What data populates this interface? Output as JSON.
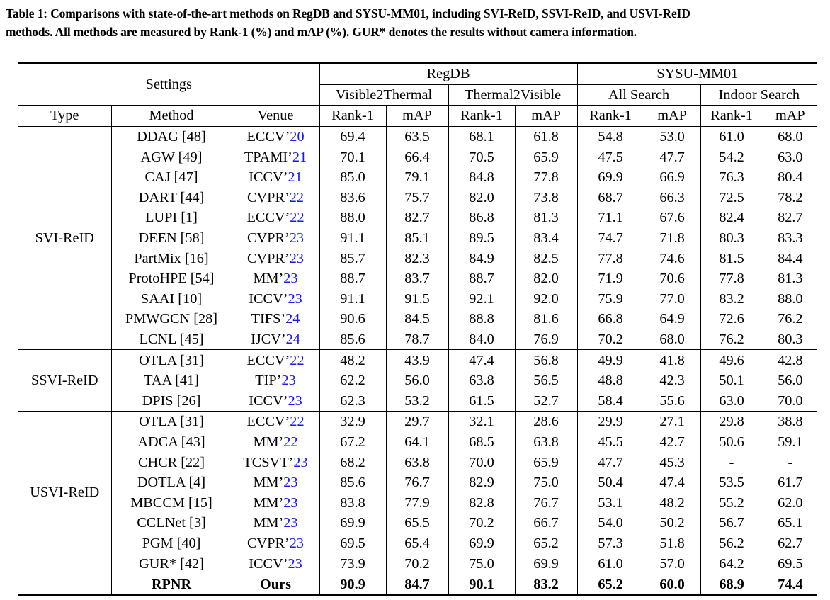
{
  "caption": {
    "line1": "Table 1: Comparisons with state-of-the-art methods on RegDB and SYSU-MM01, including SVI-ReID, SSVI-ReID, and USVI-ReID",
    "line2": "methods. All methods are measured by Rank-1 (%) and mAP (%). GUR* denotes the results without camera information."
  },
  "header": {
    "settings": "Settings",
    "regdb": "RegDB",
    "sysu": "SYSU-MM01",
    "v2t": "Visible2Thermal",
    "t2v": "Thermal2Visible",
    "all_search": "All Search",
    "indoor_search": "Indoor Search",
    "type": "Type",
    "method": "Method",
    "venue": "Venue",
    "rank1": "Rank-1",
    "map": "mAP"
  },
  "link_color": "#1a1aee",
  "groups": [
    {
      "type": "SVI-ReID",
      "rows": [
        {
          "method": "DDAG [48]",
          "venue": "ECCV’",
          "year": "20",
          "values": [
            "69.4",
            "63.5",
            "68.1",
            "61.8",
            "54.8",
            "53.0",
            "61.0",
            "68.0"
          ]
        },
        {
          "method": "AGW [49]",
          "venue": "TPAMI’",
          "year": "21",
          "values": [
            "70.1",
            "66.4",
            "70.5",
            "65.9",
            "47.5",
            "47.7",
            "54.2",
            "63.0"
          ]
        },
        {
          "method": "CAJ [47]",
          "venue": "ICCV’",
          "year": "21",
          "values": [
            "85.0",
            "79.1",
            "84.8",
            "77.8",
            "69.9",
            "66.9",
            "76.3",
            "80.4"
          ]
        },
        {
          "method": "DART [44]",
          "venue": "CVPR’",
          "year": "22",
          "values": [
            "83.6",
            "75.7",
            "82.0",
            "73.8",
            "68.7",
            "66.3",
            "72.5",
            "78.2"
          ]
        },
        {
          "method": "LUPI [1]",
          "venue": "ECCV’",
          "year": "22",
          "values": [
            "88.0",
            "82.7",
            "86.8",
            "81.3",
            "71.1",
            "67.6",
            "82.4",
            "82.7"
          ]
        },
        {
          "method": "DEEN [58]",
          "venue": "CVPR’",
          "year": "23",
          "values": [
            "91.1",
            "85.1",
            "89.5",
            "83.4",
            "74.7",
            "71.8",
            "80.3",
            "83.3"
          ]
        },
        {
          "method": "PartMix [16]",
          "venue": "CVPR’",
          "year": "23",
          "values": [
            "85.7",
            "82.3",
            "84.9",
            "82.5",
            "77.8",
            "74.6",
            "81.5",
            "84.4"
          ]
        },
        {
          "method": "ProtoHPE [54]",
          "venue": "MM’",
          "year": "23",
          "values": [
            "88.7",
            "83.7",
            "88.7",
            "82.0",
            "71.9",
            "70.6",
            "77.8",
            "81.3"
          ]
        },
        {
          "method": "SAAI [10]",
          "venue": "ICCV’",
          "year": "23",
          "values": [
            "91.1",
            "91.5",
            "92.1",
            "92.0",
            "75.9",
            "77.0",
            "83.2",
            "88.0"
          ]
        },
        {
          "method": "PMWGCN [28]",
          "venue": "TIFS’",
          "year": "24",
          "values": [
            "90.6",
            "84.5",
            "88.8",
            "81.6",
            "66.8",
            "64.9",
            "72.6",
            "76.2"
          ]
        },
        {
          "method": "LCNL [45]",
          "venue": "IJCV’",
          "year": "24",
          "values": [
            "85.6",
            "78.7",
            "84.0",
            "76.9",
            "70.2",
            "68.0",
            "76.2",
            "80.3"
          ]
        }
      ]
    },
    {
      "type": "SSVI-ReID",
      "rows": [
        {
          "method": "OTLA [31]",
          "venue": "ECCV’",
          "year": "22",
          "values": [
            "48.2",
            "43.9",
            "47.4",
            "56.8",
            "49.9",
            "41.8",
            "49.6",
            "42.8"
          ]
        },
        {
          "method": "TAA [41]",
          "venue": "TIP’",
          "year": "23",
          "values": [
            "62.2",
            "56.0",
            "63.8",
            "56.5",
            "48.8",
            "42.3",
            "50.1",
            "56.0"
          ]
        },
        {
          "method": "DPIS [26]",
          "venue": "ICCV’",
          "year": "23",
          "values": [
            "62.3",
            "53.2",
            "61.5",
            "52.7",
            "58.4",
            "55.6",
            "63.0",
            "70.0"
          ]
        }
      ]
    },
    {
      "type": "USVI-ReID",
      "rows": [
        {
          "method": "OTLA [31]",
          "venue": "ECCV’",
          "year": "22",
          "values": [
            "32.9",
            "29.7",
            "32.1",
            "28.6",
            "29.9",
            "27.1",
            "29.8",
            "38.8"
          ]
        },
        {
          "method": "ADCA [43]",
          "venue": "MM’",
          "year": "22",
          "values": [
            "67.2",
            "64.1",
            "68.5",
            "63.8",
            "45.5",
            "42.7",
            "50.6",
            "59.1"
          ]
        },
        {
          "method": "CHCR [22]",
          "venue": "TCSVT’",
          "year": "23",
          "values": [
            "68.2",
            "63.8",
            "70.0",
            "65.9",
            "47.7",
            "45.3",
            "-",
            "-"
          ]
        },
        {
          "method": "DOTLA [4]",
          "venue": "MM’",
          "year": "23",
          "values": [
            "85.6",
            "76.7",
            "82.9",
            "75.0",
            "50.4",
            "47.4",
            "53.5",
            "61.7"
          ]
        },
        {
          "method": "MBCCM [15]",
          "venue": "MM’",
          "year": "23",
          "values": [
            "83.8",
            "77.9",
            "82.8",
            "76.7",
            "53.1",
            "48.2",
            "55.2",
            "62.0"
          ]
        },
        {
          "method": "CCLNet [3]",
          "venue": "MM’",
          "year": "23",
          "values": [
            "69.9",
            "65.5",
            "70.2",
            "66.7",
            "54.0",
            "50.2",
            "56.7",
            "65.1"
          ]
        },
        {
          "method": "PGM [40]",
          "venue": "CVPR’",
          "year": "23",
          "values": [
            "69.5",
            "65.4",
            "69.9",
            "65.2",
            "57.3",
            "51.8",
            "56.2",
            "62.7"
          ]
        },
        {
          "method": "GUR* [42]",
          "venue": "ICCV’",
          "year": "23",
          "values": [
            "73.9",
            "70.2",
            "75.0",
            "69.9",
            "61.0",
            "57.0",
            "64.2",
            "69.5"
          ]
        }
      ]
    }
  ],
  "ours": {
    "method": "RPNR",
    "venue": "Ours",
    "values": [
      "90.9",
      "84.7",
      "90.1",
      "83.2",
      "65.2",
      "60.0",
      "68.9",
      "74.4"
    ]
  }
}
